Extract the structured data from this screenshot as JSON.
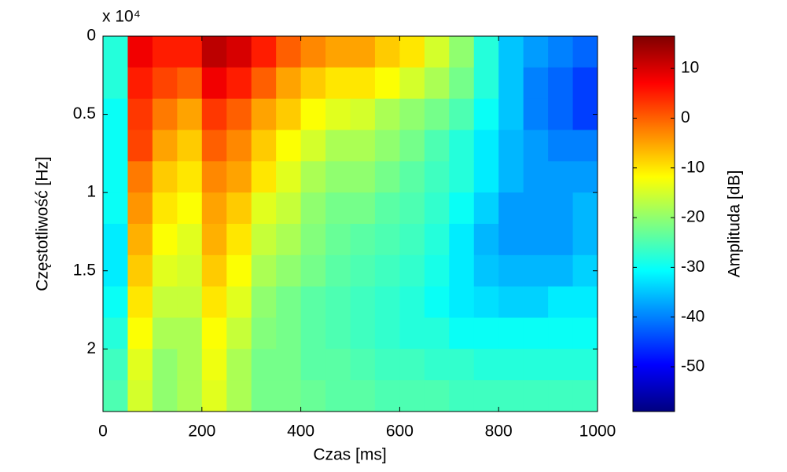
{
  "chart_data": {
    "type": "heatmap",
    "xlabel": "Czas [ms]",
    "ylabel": "Częstotliwość [Hz]",
    "y_multiplier": "x 10⁴",
    "colorbar_label": "Amplituda [dB]",
    "colormap": "jet",
    "x_edges": [
      0,
      50,
      100,
      150,
      200,
      250,
      300,
      350,
      400,
      450,
      500,
      550,
      600,
      650,
      700,
      750,
      800,
      850,
      900,
      950,
      1000
    ],
    "y_edges": [
      0,
      2000,
      4000,
      6000,
      8000,
      10000,
      12000,
      14000,
      16000,
      18000,
      20000,
      22000,
      24000
    ],
    "z": [
      [
        -28,
        8,
        5,
        5,
        12,
        10,
        5,
        0,
        -3,
        -5,
        -5,
        -8,
        -10,
        -15,
        -20,
        -28,
        -35,
        -38,
        -40,
        -42
      ],
      [
        -28,
        5,
        2,
        0,
        8,
        5,
        0,
        -5,
        -8,
        -10,
        -10,
        -12,
        -15,
        -18,
        -22,
        -28,
        -35,
        -40,
        -42,
        -45
      ],
      [
        -30,
        3,
        -2,
        -5,
        3,
        0,
        -5,
        -8,
        -12,
        -14,
        -15,
        -18,
        -20,
        -22,
        -25,
        -30,
        -35,
        -40,
        -42,
        -45
      ],
      [
        -30,
        2,
        -5,
        -8,
        0,
        -3,
        -8,
        -12,
        -15,
        -18,
        -18,
        -20,
        -22,
        -25,
        -28,
        -32,
        -36,
        -38,
        -40,
        -40
      ],
      [
        -30,
        -2,
        -8,
        -10,
        -3,
        -5,
        -10,
        -14,
        -18,
        -20,
        -20,
        -22,
        -24,
        -26,
        -28,
        -32,
        -36,
        -38,
        -38,
        -38
      ],
      [
        -30,
        -4,
        -10,
        -12,
        -5,
        -8,
        -14,
        -16,
        -20,
        -22,
        -22,
        -24,
        -25,
        -27,
        -30,
        -34,
        -38,
        -38,
        -38,
        -36
      ],
      [
        -32,
        -6,
        -12,
        -14,
        -6,
        -10,
        -16,
        -18,
        -21,
        -23,
        -24,
        -25,
        -26,
        -28,
        -32,
        -36,
        -38,
        -38,
        -38,
        -36
      ],
      [
        -32,
        -8,
        -14,
        -15,
        -8,
        -12,
        -18,
        -20,
        -22,
        -24,
        -25,
        -26,
        -27,
        -29,
        -32,
        -35,
        -36,
        -36,
        -36,
        -34
      ],
      [
        -30,
        -10,
        -16,
        -16,
        -10,
        -14,
        -20,
        -22,
        -24,
        -25,
        -26,
        -27,
        -28,
        -30,
        -32,
        -33,
        -34,
        -34,
        -32,
        -32
      ],
      [
        -28,
        -12,
        -18,
        -18,
        -12,
        -16,
        -21,
        -22,
        -24,
        -25,
        -26,
        -27,
        -28,
        -28,
        -30,
        -30,
        -30,
        -30,
        -30,
        -30
      ],
      [
        -26,
        -14,
        -20,
        -18,
        -13,
        -18,
        -22,
        -22,
        -24,
        -24,
        -25,
        -26,
        -26,
        -27,
        -27,
        -28,
        -28,
        -28,
        -28,
        -28
      ],
      [
        -25,
        -15,
        -20,
        -18,
        -14,
        -18,
        -22,
        -22,
        -23,
        -24,
        -24,
        -25,
        -25,
        -25,
        -26,
        -26,
        -26,
        -26,
        -26,
        -26
      ]
    ],
    "xlim": [
      0,
      1000
    ],
    "xticks": [
      0,
      200,
      400,
      600,
      800,
      1000
    ],
    "ylim": [
      0,
      24000
    ],
    "y_reversed": true,
    "yticks": [
      0,
      {
        "value": 5000,
        "label": "0.5"
      },
      {
        "value": 10000,
        "label": "1"
      },
      {
        "value": 15000,
        "label": "1.5"
      },
      {
        "value": 20000,
        "label": "2"
      }
    ],
    "clim": [
      -59,
      16.5
    ],
    "cticks": [
      10,
      0,
      -10,
      -20,
      -30,
      -40,
      -50
    ]
  }
}
